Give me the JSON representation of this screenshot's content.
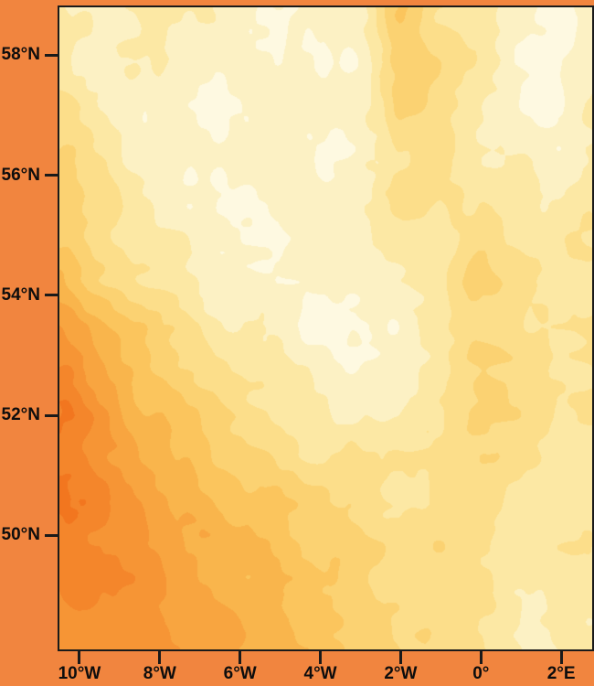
{
  "figure": {
    "background_color": "#F1853F",
    "frame_color": "#1A1A1A",
    "tick_color": "#1A1A1A",
    "label_color": "#0D0D0D"
  },
  "chart_data": {
    "type": "heatmap",
    "subtype": "filled_contour_map",
    "title": "",
    "xlabel": "",
    "ylabel": "",
    "legend": "none",
    "grid_lines": "off",
    "x_ticks": [
      {
        "lon": -10,
        "label": "10°W"
      },
      {
        "lon": -8,
        "label": "8°W"
      },
      {
        "lon": -6,
        "label": "6°W"
      },
      {
        "lon": -4,
        "label": "4°W"
      },
      {
        "lon": -2,
        "label": "2°W"
      },
      {
        "lon": 0,
        "label": "0°"
      },
      {
        "lon": 2,
        "label": "2°E"
      }
    ],
    "y_ticks": [
      {
        "lat": 58,
        "label": "58°N"
      },
      {
        "lat": 56,
        "label": "56°N"
      },
      {
        "lat": 54,
        "label": "54°N"
      },
      {
        "lat": 52,
        "label": "52°N"
      },
      {
        "lat": 50,
        "label": "50°N"
      }
    ],
    "xlim": [
      -10.5,
      2.77
    ],
    "ylim": [
      48.1,
      58.8
    ],
    "palette_light_to_dark": [
      "#FEF9E1",
      "#FCF1C4",
      "#FCE8A4",
      "#FCDE8A",
      "#FBD272",
      "#FBC55D",
      "#F9B54C",
      "#F8A540",
      "#F69535",
      "#F4862B",
      "#F2761F"
    ],
    "grid_levels": {
      "description": "Estimated filled-contour shading level (0 = lightest cream, 10 = darkest orange) sampled on a uniform 15-column x 9-row grid spanning the full plot area; rows run north (top) to south (bottom), columns west (left) to east (right). Field is darkest toward the southwest (Atlantic) corner, palest over the central/northern area, with a slightly darker streak descending near 2°W-0° and a pale pocket in the far northeast and southeast corners.",
      "rows": [
        [
          1.5,
          1.0,
          2.0,
          2.0,
          1.5,
          1.0,
          0.5,
          0.5,
          1.5,
          4.5,
          3.0,
          2.5,
          1.0,
          0.5,
          1.5
        ],
        [
          2.5,
          1.5,
          1.0,
          1.0,
          0.5,
          1.0,
          1.0,
          0.5,
          1.0,
          3.5,
          3.0,
          2.0,
          1.0,
          0.5,
          1.5
        ],
        [
          4.0,
          2.5,
          1.5,
          1.0,
          0.5,
          0.5,
          1.0,
          0.5,
          1.5,
          2.5,
          2.5,
          2.0,
          1.5,
          1.0,
          2.0
        ],
        [
          5.0,
          3.5,
          2.5,
          1.5,
          1.0,
          0.5,
          0.5,
          1.0,
          1.0,
          2.0,
          2.0,
          3.0,
          2.5,
          2.0,
          2.5
        ],
        [
          7.0,
          5.5,
          4.5,
          3.0,
          2.0,
          1.5,
          1.0,
          0.5,
          0.5,
          1.0,
          2.0,
          3.5,
          3.0,
          2.5,
          2.5
        ],
        [
          9.5,
          7.5,
          6.0,
          5.0,
          4.0,
          3.0,
          2.0,
          1.5,
          1.5,
          1.5,
          2.5,
          3.5,
          3.0,
          2.5,
          2.5
        ],
        [
          9.5,
          8.5,
          7.0,
          6.0,
          5.5,
          4.5,
          4.0,
          3.5,
          3.0,
          2.5,
          3.0,
          3.0,
          2.5,
          2.0,
          2.0
        ],
        [
          9.0,
          8.5,
          8.0,
          7.0,
          6.5,
          5.5,
          5.0,
          4.5,
          3.5,
          3.0,
          3.0,
          2.5,
          2.0,
          2.0,
          2.0
        ],
        [
          8.5,
          8.0,
          8.0,
          7.5,
          7.0,
          6.0,
          5.5,
          5.0,
          4.5,
          3.5,
          3.0,
          2.5,
          2.0,
          1.5,
          1.5
        ]
      ]
    }
  }
}
